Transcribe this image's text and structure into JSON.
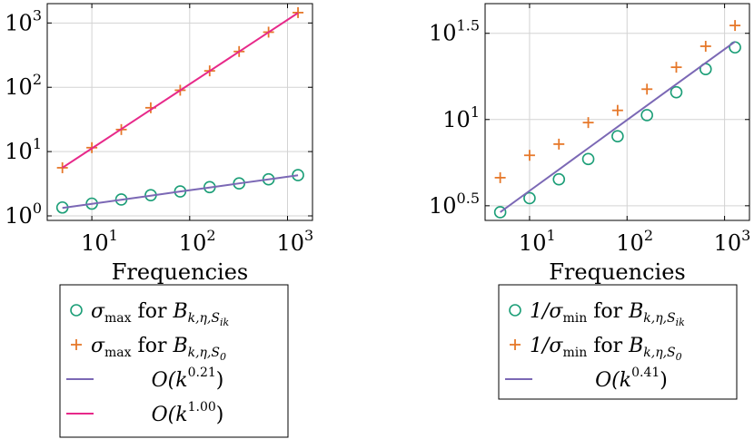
{
  "colors": {
    "circle_marker": "#1b9e77",
    "plus_marker": "#e6782a",
    "fit_line_a": "#7b68b5",
    "fit_line_b": "#e7298a",
    "grid": "#d3d3d3",
    "axis": "#000000"
  },
  "chart_data": [
    {
      "type": "line",
      "xscale": "log",
      "yscale": "log",
      "xlim": [
        3.5,
        1800
      ],
      "ylim": [
        0.85,
        2000
      ],
      "grid": true,
      "xlabel": "Frequencies",
      "x_ticks": [
        {
          "value": 10,
          "base": "10",
          "exp": "1"
        },
        {
          "value": 100,
          "base": "10",
          "exp": "2"
        },
        {
          "value": 1000,
          "base": "10",
          "exp": "3"
        }
      ],
      "y_ticks": [
        {
          "value": 1,
          "base": "10",
          "exp": "0"
        },
        {
          "value": 10,
          "base": "10",
          "exp": "1"
        },
        {
          "value": 100,
          "base": "10",
          "exp": "2"
        },
        {
          "value": 1000,
          "base": "10",
          "exp": "3"
        }
      ],
      "x": [
        5,
        10,
        20,
        40,
        80,
        160,
        320,
        640,
        1280
      ],
      "series": [
        {
          "name": "σmax for Bk,η,Sik",
          "marker": "circle",
          "values": [
            1.35,
            1.55,
            1.8,
            2.1,
            2.4,
            2.8,
            3.2,
            3.7,
            4.3
          ]
        },
        {
          "name": "σmax for Bk,η,S0",
          "marker": "plus",
          "values": [
            5.6,
            11.5,
            22,
            48,
            90,
            180,
            360,
            720,
            1450
          ]
        },
        {
          "name": "O(k0.21)",
          "marker": "line",
          "values": [
            1.33,
            1.54,
            1.78,
            2.06,
            2.39,
            2.76,
            3.2,
            3.7,
            4.28
          ]
        },
        {
          "name": "O(k1.00)",
          "marker": "line",
          "values": [
            5.6,
            11.2,
            22.4,
            44.8,
            89.6,
            179,
            358,
            717,
            1434
          ]
        }
      ],
      "legend": [
        {
          "marker": "circle",
          "prefix": "σ",
          "prefix_sub": "max",
          "text": " for ",
          "B_sub": "k,η,S",
          "B_subsub": "ik"
        },
        {
          "marker": "plus",
          "prefix": "σ",
          "prefix_sub": "max",
          "text": " for ",
          "B_sub": "k,η,S",
          "B_subsub": "0"
        },
        {
          "marker": "line",
          "big_o": "O(k",
          "exp": "0.21",
          "close": ")"
        },
        {
          "marker": "line",
          "big_o": "O(k",
          "exp": "1.00",
          "close": ")"
        }
      ],
      "legend_placement": "below"
    },
    {
      "type": "line",
      "xscale": "log",
      "yscale": "log",
      "xlim": [
        3.5,
        1800
      ],
      "ylim": [
        2.6,
        47
      ],
      "grid": true,
      "xlabel": "Frequencies",
      "x_ticks": [
        {
          "value": 10,
          "base": "10",
          "exp": "1"
        },
        {
          "value": 100,
          "base": "10",
          "exp": "2"
        },
        {
          "value": 1000,
          "base": "10",
          "exp": "3"
        }
      ],
      "y_ticks": [
        {
          "value": 3.162,
          "base": "10",
          "exp": "0.5"
        },
        {
          "value": 10,
          "base": "10",
          "exp": "1"
        },
        {
          "value": 31.62,
          "base": "10",
          "exp": "1.5"
        }
      ],
      "x": [
        5,
        10,
        20,
        40,
        80,
        160,
        320,
        640,
        1280
      ],
      "series": [
        {
          "name": "1/σmin for Bk,η,Sik",
          "marker": "circle",
          "values": [
            2.9,
            3.5,
            4.5,
            5.9,
            8.0,
            10.6,
            14.4,
            19.6,
            26.2
          ]
        },
        {
          "name": "1/σmin for Bk,η,S0",
          "marker": "plus",
          "values": [
            4.6,
            6.2,
            7.2,
            9.6,
            11.3,
            15.0,
            20.1,
            26.6,
            35.1
          ]
        },
        {
          "name": "O(k0.41)",
          "marker": "line",
          "values": [
            2.9,
            3.86,
            5.13,
            6.82,
            9.07,
            12.06,
            16.03,
            21.3,
            28.3
          ]
        }
      ],
      "legend": [
        {
          "marker": "circle",
          "prefix": "1/σ",
          "prefix_sub": "min",
          "text": " for ",
          "B_sub": "k,η,S",
          "B_subsub": "ik"
        },
        {
          "marker": "plus",
          "prefix": "1/σ",
          "prefix_sub": "min",
          "text": " for ",
          "B_sub": "k,η,S",
          "B_subsub": "0"
        },
        {
          "marker": "line",
          "big_o": "O(k",
          "exp": "0.41",
          "close": ")"
        }
      ],
      "legend_placement": "below"
    }
  ]
}
